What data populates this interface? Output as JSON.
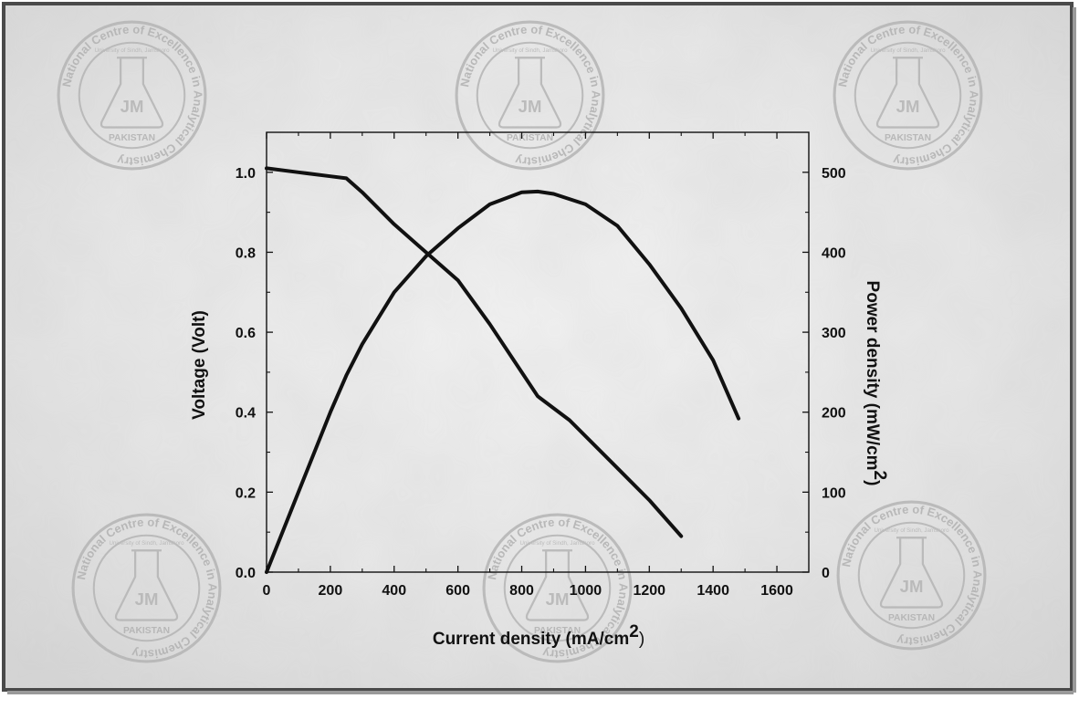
{
  "chart_data": {
    "type": "line",
    "xlabel": "Current density (mA/cm",
    "xlabel_sup": "2",
    "xlabel_close": ")",
    "ylabel_left": "Voltage (Volt)",
    "ylabel_right": "Power density (mW/cm",
    "ylabel_right_sup": "2",
    "ylabel_right_close": ")",
    "xlim": [
      0,
      1700
    ],
    "ylim_left": [
      0,
      1.1
    ],
    "ylim_right": [
      0,
      550
    ],
    "x_ticks": [
      "0",
      "200",
      "400",
      "600",
      "800",
      "1000",
      "1200",
      "1400",
      "1600"
    ],
    "y_left_ticks": [
      "0.0",
      "0.2",
      "0.4",
      "0.6",
      "0.8",
      "1.0"
    ],
    "y_right_ticks": [
      "0",
      "100",
      "200",
      "300",
      "400",
      "500"
    ],
    "grid": false,
    "legend": "none",
    "series": [
      {
        "axis": "left",
        "color": "#111111",
        "x": [
          0,
          100,
          200,
          250,
          300,
          400,
          500,
          600,
          700,
          800,
          850,
          950,
          1100,
          1200,
          1300
        ],
        "y": [
          1.01,
          1.0,
          0.99,
          0.985,
          0.95,
          0.87,
          0.8,
          0.73,
          0.62,
          0.5,
          0.44,
          0.38,
          0.26,
          0.18,
          0.09
        ]
      },
      {
        "axis": "right",
        "color": "#111111",
        "x": [
          0,
          100,
          200,
          250,
          300,
          400,
          500,
          600,
          700,
          800,
          850,
          900,
          1000,
          1100,
          1200,
          1300,
          1400,
          1480
        ],
        "y": [
          0,
          100,
          200,
          246,
          285,
          350,
          395,
          430,
          460,
          475,
          476,
          473,
          460,
          433,
          385,
          330,
          265,
          192
        ]
      }
    ]
  },
  "watermark": {
    "text": "National Centre of Excellence in Analytical Chemistry",
    "country": "PAKISTAN",
    "university": "University of Sindh, Jamshoro",
    "monogram": "JM"
  }
}
